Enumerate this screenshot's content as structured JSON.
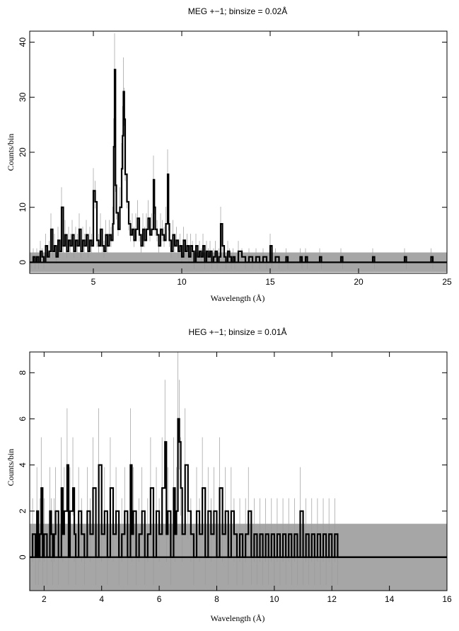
{
  "chart_data": [
    {
      "type": "line",
      "title": "MEG +−1; binsize = 0.02Å",
      "xlabel": "Wavelength (Å)",
      "ylabel": "Counts/bin",
      "xlim": [
        1.4,
        25
      ],
      "ylim": [
        -2,
        42
      ],
      "xticks": [
        5,
        10,
        15,
        20,
        25
      ],
      "yticks": [
        0,
        10,
        20,
        30,
        40
      ],
      "grid": false,
      "error_band": [
        -1.8,
        1.8
      ],
      "error_band_color": "#a6a6a6",
      "spectrum_color": "#000000",
      "series": [
        {
          "values": [
            [
              1.5,
              0
            ],
            [
              1.6,
              1
            ],
            [
              1.7,
              0
            ],
            [
              1.8,
              1
            ],
            [
              1.9,
              0
            ],
            [
              2.0,
              2
            ],
            [
              2.1,
              1
            ],
            [
              2.2,
              0
            ],
            [
              2.3,
              3
            ],
            [
              2.4,
              1
            ],
            [
              2.5,
              2
            ],
            [
              2.6,
              6
            ],
            [
              2.7,
              2
            ],
            [
              2.8,
              3
            ],
            [
              2.9,
              1
            ],
            [
              3.0,
              4
            ],
            [
              3.1,
              2
            ],
            [
              3.2,
              10
            ],
            [
              3.3,
              3
            ],
            [
              3.4,
              5
            ],
            [
              3.5,
              2
            ],
            [
              3.6,
              4
            ],
            [
              3.7,
              3
            ],
            [
              3.8,
              5
            ],
            [
              3.9,
              2
            ],
            [
              4.0,
              4
            ],
            [
              4.1,
              3
            ],
            [
              4.2,
              6
            ],
            [
              4.3,
              2
            ],
            [
              4.4,
              4
            ],
            [
              4.5,
              3
            ],
            [
              4.6,
              5
            ],
            [
              4.7,
              2
            ],
            [
              4.8,
              4
            ],
            [
              4.9,
              3
            ],
            [
              5.0,
              13
            ],
            [
              5.1,
              11
            ],
            [
              5.2,
              4
            ],
            [
              5.3,
              3
            ],
            [
              5.4,
              6
            ],
            [
              5.5,
              3
            ],
            [
              5.6,
              2
            ],
            [
              5.7,
              5
            ],
            [
              5.8,
              3
            ],
            [
              5.9,
              5
            ],
            [
              6.0,
              4
            ],
            [
              6.1,
              7
            ],
            [
              6.15,
              21
            ],
            [
              6.2,
              35
            ],
            [
              6.25,
              14
            ],
            [
              6.3,
              9
            ],
            [
              6.4,
              6
            ],
            [
              6.5,
              10
            ],
            [
              6.6,
              17
            ],
            [
              6.65,
              23
            ],
            [
              6.7,
              31
            ],
            [
              6.75,
              26
            ],
            [
              6.8,
              16
            ],
            [
              6.9,
              11
            ],
            [
              7.0,
              7
            ],
            [
              7.1,
              5
            ],
            [
              7.2,
              6
            ],
            [
              7.3,
              4
            ],
            [
              7.4,
              6
            ],
            [
              7.5,
              8
            ],
            [
              7.6,
              5
            ],
            [
              7.7,
              3
            ],
            [
              7.8,
              6
            ],
            [
              7.9,
              4
            ],
            [
              8.0,
              6
            ],
            [
              8.1,
              8
            ],
            [
              8.2,
              5
            ],
            [
              8.3,
              6
            ],
            [
              8.4,
              15
            ],
            [
              8.45,
              10
            ],
            [
              8.5,
              6
            ],
            [
              8.6,
              5
            ],
            [
              8.7,
              3
            ],
            [
              8.8,
              6
            ],
            [
              8.9,
              5
            ],
            [
              9.0,
              4
            ],
            [
              9.1,
              7
            ],
            [
              9.2,
              16
            ],
            [
              9.25,
              7
            ],
            [
              9.3,
              4
            ],
            [
              9.4,
              2
            ],
            [
              9.5,
              5
            ],
            [
              9.6,
              3
            ],
            [
              9.7,
              4
            ],
            [
              9.8,
              2
            ],
            [
              9.9,
              3
            ],
            [
              10.0,
              1
            ],
            [
              10.1,
              4
            ],
            [
              10.2,
              2
            ],
            [
              10.3,
              3
            ],
            [
              10.4,
              1
            ],
            [
              10.5,
              3
            ],
            [
              10.6,
              2
            ],
            [
              10.7,
              0
            ],
            [
              10.8,
              3
            ],
            [
              10.9,
              1
            ],
            [
              11.0,
              2
            ],
            [
              11.1,
              1
            ],
            [
              11.2,
              3
            ],
            [
              11.3,
              0
            ],
            [
              11.4,
              2
            ],
            [
              11.5,
              1
            ],
            [
              11.6,
              2
            ],
            [
              11.7,
              0
            ],
            [
              11.8,
              1
            ],
            [
              11.9,
              2
            ],
            [
              12.0,
              0
            ],
            [
              12.1,
              1
            ],
            [
              12.2,
              7
            ],
            [
              12.3,
              3
            ],
            [
              12.4,
              1
            ],
            [
              12.5,
              0
            ],
            [
              12.6,
              2
            ],
            [
              12.7,
              1
            ],
            [
              12.8,
              0
            ],
            [
              12.9,
              1
            ],
            [
              13.0,
              0
            ],
            [
              13.2,
              2
            ],
            [
              13.4,
              1
            ],
            [
              13.6,
              0
            ],
            [
              13.8,
              1
            ],
            [
              14.0,
              0
            ],
            [
              14.2,
              1
            ],
            [
              14.4,
              0
            ],
            [
              14.6,
              1
            ],
            [
              14.8,
              0
            ],
            [
              15.0,
              3
            ],
            [
              15.1,
              0
            ],
            [
              15.3,
              1
            ],
            [
              15.5,
              0
            ],
            [
              15.9,
              1
            ],
            [
              16.0,
              0
            ],
            [
              16.7,
              1
            ],
            [
              16.8,
              0
            ],
            [
              17.0,
              1
            ],
            [
              17.1,
              0
            ],
            [
              17.8,
              1
            ],
            [
              17.9,
              0
            ],
            [
              19.0,
              1
            ],
            [
              19.1,
              0
            ],
            [
              20.8,
              1
            ],
            [
              20.9,
              0
            ],
            [
              22.6,
              1
            ],
            [
              22.7,
              0
            ],
            [
              24.1,
              1
            ],
            [
              24.2,
              0
            ],
            [
              25.0,
              0
            ]
          ]
        }
      ]
    },
    {
      "type": "line",
      "title": "HEG +−1; binsize = 0.01Å",
      "xlabel": "Wavelength (Å)",
      "ylabel": "Counts/bin",
      "xlim": [
        1.5,
        16
      ],
      "ylim": [
        -1.45,
        8.9
      ],
      "xticks": [
        2,
        4,
        6,
        8,
        10,
        12,
        14,
        16
      ],
      "yticks": [
        0,
        2,
        4,
        6,
        8
      ],
      "grid": false,
      "error_band": [
        -1.45,
        1.45
      ],
      "error_band_color": "#a6a6a6",
      "spectrum_color": "#000000",
      "series": [
        {
          "values": [
            [
              1.6,
              1
            ],
            [
              1.7,
              0
            ],
            [
              1.75,
              2
            ],
            [
              1.8,
              0
            ],
            [
              1.85,
              1
            ],
            [
              1.9,
              3
            ],
            [
              1.95,
              0
            ],
            [
              2.0,
              1
            ],
            [
              2.1,
              0
            ],
            [
              2.2,
              2
            ],
            [
              2.25,
              1
            ],
            [
              2.3,
              0
            ],
            [
              2.35,
              1
            ],
            [
              2.4,
              2
            ],
            [
              2.5,
              0
            ],
            [
              2.6,
              3
            ],
            [
              2.65,
              1
            ],
            [
              2.7,
              2
            ],
            [
              2.8,
              4
            ],
            [
              2.85,
              0
            ],
            [
              2.9,
              2
            ],
            [
              3.0,
              3
            ],
            [
              3.05,
              1
            ],
            [
              3.1,
              0
            ],
            [
              3.2,
              2
            ],
            [
              3.3,
              1
            ],
            [
              3.4,
              0
            ],
            [
              3.5,
              2
            ],
            [
              3.6,
              1
            ],
            [
              3.7,
              3
            ],
            [
              3.8,
              0
            ],
            [
              3.9,
              4
            ],
            [
              4.0,
              1
            ],
            [
              4.1,
              2
            ],
            [
              4.2,
              0
            ],
            [
              4.3,
              3
            ],
            [
              4.4,
              1
            ],
            [
              4.5,
              2
            ],
            [
              4.6,
              0
            ],
            [
              4.7,
              1
            ],
            [
              4.8,
              2
            ],
            [
              4.9,
              0
            ],
            [
              5.0,
              4
            ],
            [
              5.05,
              1
            ],
            [
              5.1,
              2
            ],
            [
              5.2,
              0
            ],
            [
              5.3,
              1
            ],
            [
              5.4,
              2
            ],
            [
              5.5,
              0
            ],
            [
              5.6,
              1
            ],
            [
              5.7,
              3
            ],
            [
              5.8,
              0
            ],
            [
              5.9,
              2
            ],
            [
              6.0,
              1
            ],
            [
              6.1,
              3
            ],
            [
              6.2,
              5
            ],
            [
              6.25,
              1
            ],
            [
              6.3,
              2
            ],
            [
              6.4,
              0
            ],
            [
              6.5,
              3
            ],
            [
              6.55,
              1
            ],
            [
              6.6,
              2
            ],
            [
              6.65,
              6
            ],
            [
              6.7,
              5
            ],
            [
              6.75,
              3
            ],
            [
              6.8,
              1
            ],
            [
              6.9,
              4
            ],
            [
              7.0,
              2
            ],
            [
              7.1,
              1
            ],
            [
              7.2,
              0
            ],
            [
              7.3,
              2
            ],
            [
              7.4,
              1
            ],
            [
              7.5,
              3
            ],
            [
              7.6,
              0
            ],
            [
              7.7,
              2
            ],
            [
              7.8,
              1
            ],
            [
              7.9,
              2
            ],
            [
              8.0,
              0
            ],
            [
              8.1,
              3
            ],
            [
              8.2,
              1
            ],
            [
              8.3,
              2
            ],
            [
              8.4,
              0
            ],
            [
              8.5,
              2
            ],
            [
              8.6,
              1
            ],
            [
              8.7,
              0
            ],
            [
              8.8,
              1
            ],
            [
              8.9,
              0
            ],
            [
              9.0,
              1
            ],
            [
              9.1,
              2
            ],
            [
              9.2,
              0
            ],
            [
              9.3,
              1
            ],
            [
              9.4,
              0
            ],
            [
              9.5,
              1
            ],
            [
              9.6,
              0
            ],
            [
              9.7,
              1
            ],
            [
              9.8,
              0
            ],
            [
              9.9,
              1
            ],
            [
              10.0,
              0
            ],
            [
              10.1,
              1
            ],
            [
              10.2,
              0
            ],
            [
              10.3,
              1
            ],
            [
              10.4,
              0
            ],
            [
              10.5,
              1
            ],
            [
              10.6,
              0
            ],
            [
              10.7,
              1
            ],
            [
              10.8,
              0
            ],
            [
              10.9,
              2
            ],
            [
              11.0,
              0
            ],
            [
              11.1,
              1
            ],
            [
              11.2,
              0
            ],
            [
              11.3,
              1
            ],
            [
              11.4,
              0
            ],
            [
              11.5,
              1
            ],
            [
              11.6,
              0
            ],
            [
              11.7,
              1
            ],
            [
              11.8,
              0
            ],
            [
              11.9,
              1
            ],
            [
              12.0,
              0
            ],
            [
              12.1,
              1
            ],
            [
              12.2,
              0
            ],
            [
              16.0,
              0
            ]
          ]
        }
      ]
    }
  ]
}
